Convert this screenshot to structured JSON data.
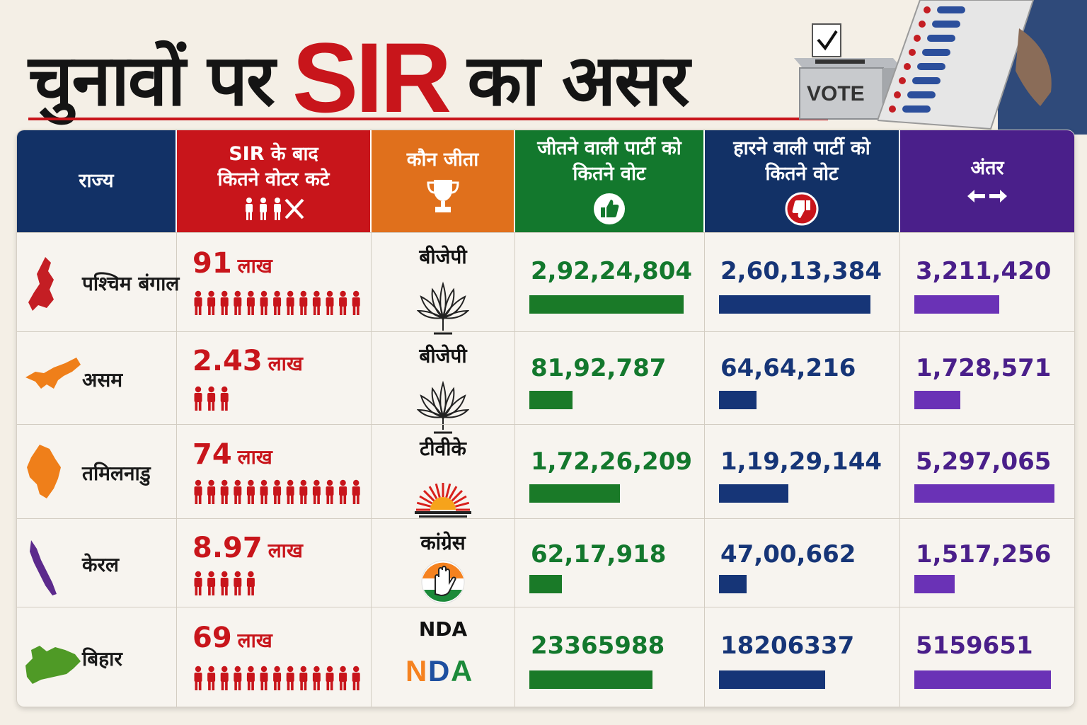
{
  "title": {
    "part1": "चुनावों पर",
    "part2": "SIR",
    "part3": "का असर"
  },
  "vote_box_label": "VOTE",
  "colors": {
    "header_state": "#123166",
    "header_removed": "#c8151b",
    "header_winner": "#e0701c",
    "header_win_votes": "#13782d",
    "header_lose_votes": "#123166",
    "header_margin": "#4a1f8a",
    "win_bar": "#1a7a28",
    "lose_bar": "#163577",
    "margin_bar": "#6a32b6",
    "removed_text": "#c8151b"
  },
  "columns": {
    "state": "राज्य",
    "removed": "SIR के बाद\nकितने वोटर कटे",
    "winner": "कौन जीता",
    "win_votes": "जीतने वाली पार्टी को\nकितने वोट",
    "lose_votes": "हारने वाली पार्टी को\nकितने वोट",
    "margin": "अंतर"
  },
  "rows": [
    {
      "state": "पश्चिम बंगाल",
      "removed": "91",
      "unit": "लाख",
      "winner": "बीजेपी",
      "win_votes": "2,92,24,804",
      "lose_votes": "2,60,13,384",
      "margin": "3,211,420"
    },
    {
      "state": "असम",
      "removed": "2.43",
      "unit": "लाख",
      "winner": "बीजेपी",
      "win_votes": "81,92,787",
      "lose_votes": "64,64,216",
      "margin": "1,728,571"
    },
    {
      "state": "तमिलनाडु",
      "removed": "74",
      "unit": "लाख",
      "winner": "टीवीके",
      "win_votes": "1,72,26,209",
      "lose_votes": "1,19,29,144",
      "margin": "5,297,065"
    },
    {
      "state": "केरल",
      "removed": "8.97",
      "unit": "लाख",
      "winner": "कांग्रेस",
      "win_votes": "62,17,918",
      "lose_votes": "47,00,662",
      "margin": "1,517,256"
    },
    {
      "state": "बिहार",
      "removed": "69",
      "unit": "लाख",
      "winner": "NDA",
      "win_votes": "23365988",
      "lose_votes": "18206337",
      "margin": "5159651"
    }
  ],
  "nda_logo": "NDA",
  "chart_data": {
    "type": "table",
    "categories": [
      "पश्चिम बंगाल",
      "असम",
      "तमिलनाडु",
      "केरल",
      "बिहार"
    ],
    "series": [
      {
        "name": "SIR के बाद कितने वोटर कटे",
        "values": [
          91,
          2.43,
          74,
          8.97,
          69
        ]
      },
      {
        "name": "जीतने वाली पार्टी को कितने वोट",
        "values": [
          29224804,
          8192787,
          17226209,
          6217918,
          23365988
        ]
      },
      {
        "name": "हारने वाली पार्टी को कितने वोट",
        "values": [
          26013384,
          6464216,
          11929144,
          4700662,
          18206337
        ]
      },
      {
        "name": "अंतर",
        "values": [
          3211420,
          1728571,
          5297065,
          1517256,
          5159651
        ]
      }
    ],
    "people_icon_counts": [
      13,
      3,
      13,
      5,
      13
    ],
    "winners": [
      "बीजेपी",
      "बीजेपी",
      "टीवीके",
      "कांग्रेस",
      "NDA"
    ]
  }
}
